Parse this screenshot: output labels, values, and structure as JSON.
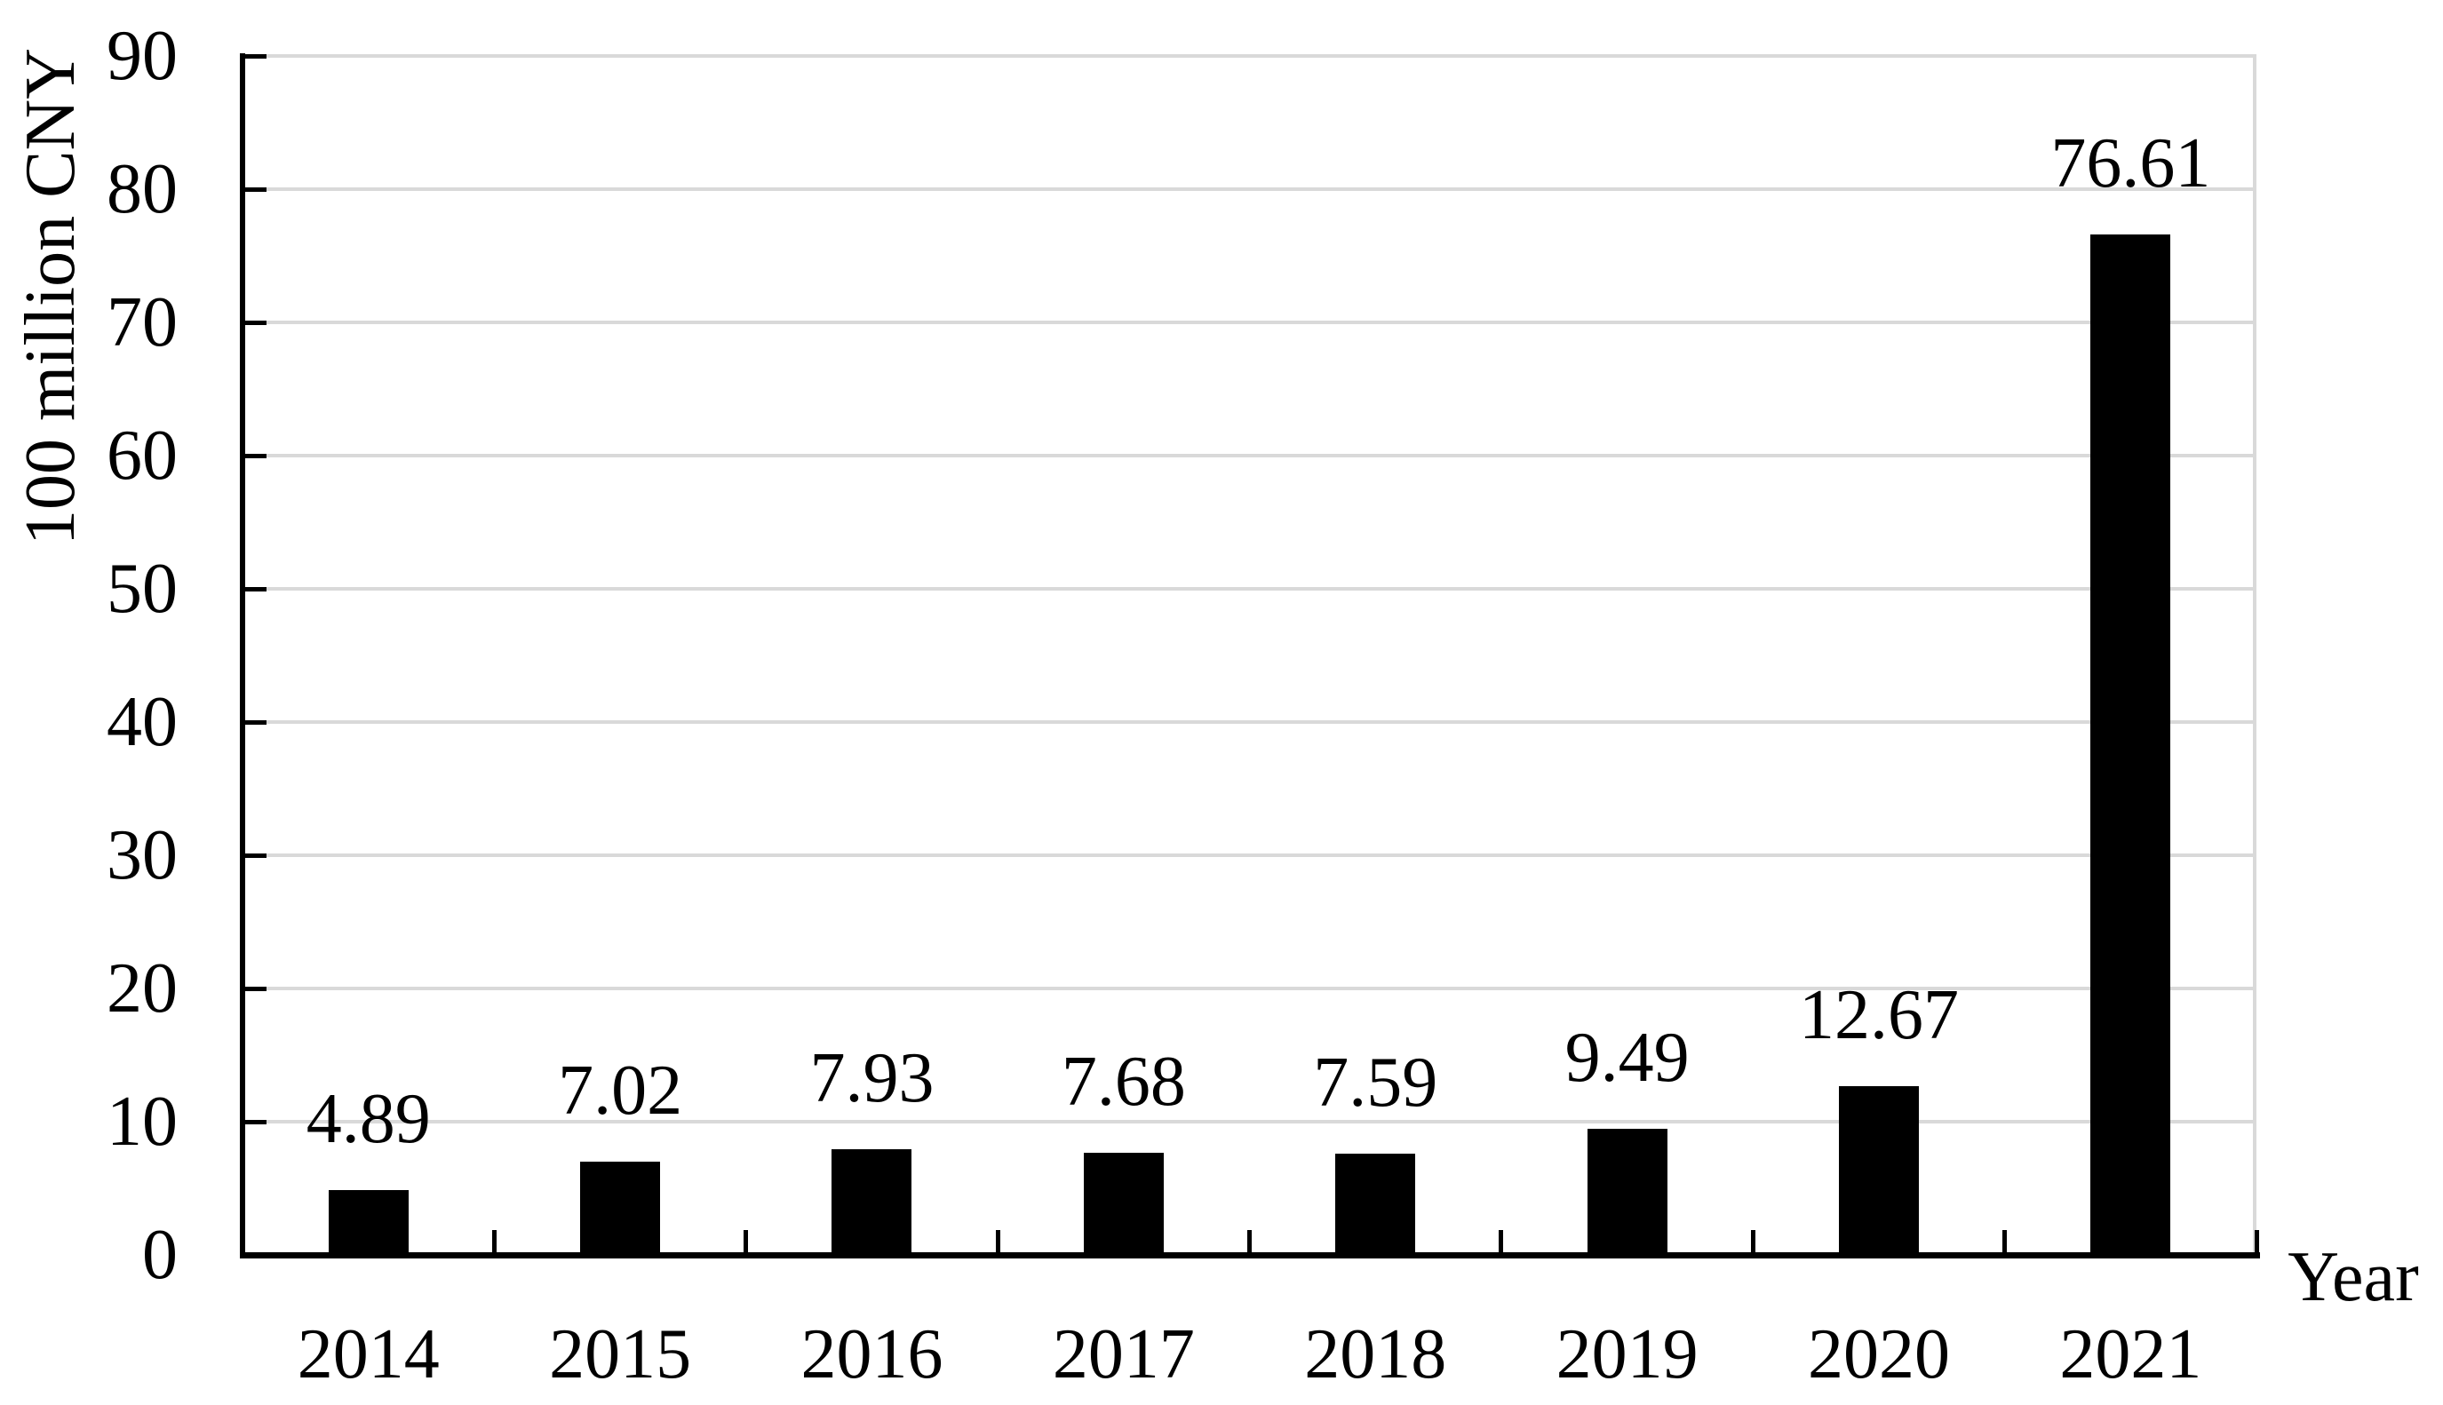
{
  "chart_data": {
    "type": "bar",
    "categories": [
      "2014",
      "2015",
      "2016",
      "2017",
      "2018",
      "2019",
      "2020",
      "2021"
    ],
    "values": [
      4.89,
      7.02,
      7.93,
      7.68,
      7.59,
      9.49,
      12.67,
      76.61
    ],
    "data_labels": [
      "4.89",
      "7.02",
      "7.93",
      "7.68",
      "7.59",
      "9.49",
      "12.67",
      "76.61"
    ],
    "title": "",
    "xlabel": "Year",
    "ylabel": "100 million CNY",
    "y_ticks": [
      0,
      10,
      20,
      30,
      40,
      50,
      60,
      70,
      80,
      90
    ],
    "ylim": [
      0,
      90
    ],
    "grid": true,
    "legend": "none",
    "bar_color": "#000000",
    "axis_color": "#000000",
    "gridline_color": "#d9d9d9",
    "text_color": "#000000",
    "background_color": "#ffffff"
  }
}
